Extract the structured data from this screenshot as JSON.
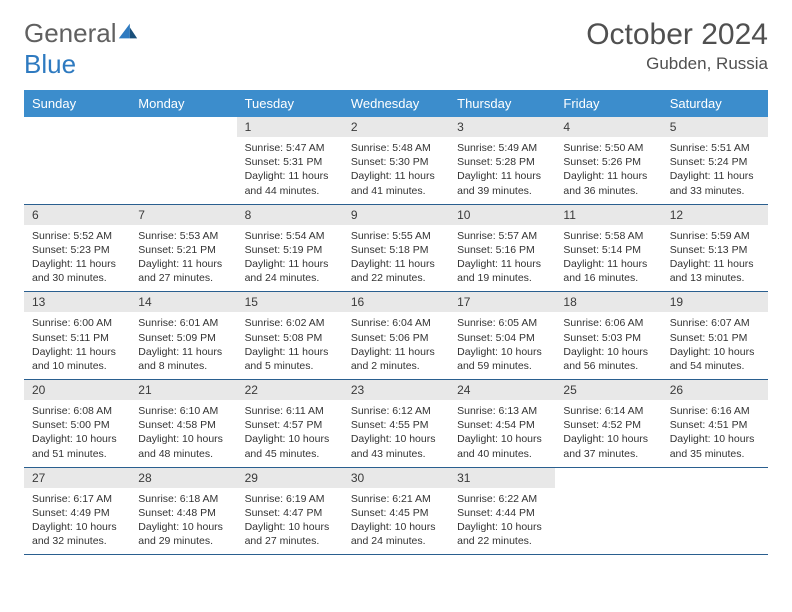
{
  "header": {
    "logo_word1": "General",
    "logo_word2": "Blue",
    "month_title": "October 2024",
    "location": "Gubden, Russia"
  },
  "colors": {
    "header_bg": "#3c8dcc",
    "daynum_bg": "#e8e8e8",
    "row_border": "#2a5f8f",
    "text": "#333333",
    "logo_gray": "#606060",
    "logo_blue": "#2e7ac0"
  },
  "day_headers": [
    "Sunday",
    "Monday",
    "Tuesday",
    "Wednesday",
    "Thursday",
    "Friday",
    "Saturday"
  ],
  "weeks": [
    [
      null,
      null,
      {
        "n": "1",
        "sr": "Sunrise: 5:47 AM",
        "ss": "Sunset: 5:31 PM",
        "d1": "Daylight: 11 hours",
        "d2": "and 44 minutes."
      },
      {
        "n": "2",
        "sr": "Sunrise: 5:48 AM",
        "ss": "Sunset: 5:30 PM",
        "d1": "Daylight: 11 hours",
        "d2": "and 41 minutes."
      },
      {
        "n": "3",
        "sr": "Sunrise: 5:49 AM",
        "ss": "Sunset: 5:28 PM",
        "d1": "Daylight: 11 hours",
        "d2": "and 39 minutes."
      },
      {
        "n": "4",
        "sr": "Sunrise: 5:50 AM",
        "ss": "Sunset: 5:26 PM",
        "d1": "Daylight: 11 hours",
        "d2": "and 36 minutes."
      },
      {
        "n": "5",
        "sr": "Sunrise: 5:51 AM",
        "ss": "Sunset: 5:24 PM",
        "d1": "Daylight: 11 hours",
        "d2": "and 33 minutes."
      }
    ],
    [
      {
        "n": "6",
        "sr": "Sunrise: 5:52 AM",
        "ss": "Sunset: 5:23 PM",
        "d1": "Daylight: 11 hours",
        "d2": "and 30 minutes."
      },
      {
        "n": "7",
        "sr": "Sunrise: 5:53 AM",
        "ss": "Sunset: 5:21 PM",
        "d1": "Daylight: 11 hours",
        "d2": "and 27 minutes."
      },
      {
        "n": "8",
        "sr": "Sunrise: 5:54 AM",
        "ss": "Sunset: 5:19 PM",
        "d1": "Daylight: 11 hours",
        "d2": "and 24 minutes."
      },
      {
        "n": "9",
        "sr": "Sunrise: 5:55 AM",
        "ss": "Sunset: 5:18 PM",
        "d1": "Daylight: 11 hours",
        "d2": "and 22 minutes."
      },
      {
        "n": "10",
        "sr": "Sunrise: 5:57 AM",
        "ss": "Sunset: 5:16 PM",
        "d1": "Daylight: 11 hours",
        "d2": "and 19 minutes."
      },
      {
        "n": "11",
        "sr": "Sunrise: 5:58 AM",
        "ss": "Sunset: 5:14 PM",
        "d1": "Daylight: 11 hours",
        "d2": "and 16 minutes."
      },
      {
        "n": "12",
        "sr": "Sunrise: 5:59 AM",
        "ss": "Sunset: 5:13 PM",
        "d1": "Daylight: 11 hours",
        "d2": "and 13 minutes."
      }
    ],
    [
      {
        "n": "13",
        "sr": "Sunrise: 6:00 AM",
        "ss": "Sunset: 5:11 PM",
        "d1": "Daylight: 11 hours",
        "d2": "and 10 minutes."
      },
      {
        "n": "14",
        "sr": "Sunrise: 6:01 AM",
        "ss": "Sunset: 5:09 PM",
        "d1": "Daylight: 11 hours",
        "d2": "and 8 minutes."
      },
      {
        "n": "15",
        "sr": "Sunrise: 6:02 AM",
        "ss": "Sunset: 5:08 PM",
        "d1": "Daylight: 11 hours",
        "d2": "and 5 minutes."
      },
      {
        "n": "16",
        "sr": "Sunrise: 6:04 AM",
        "ss": "Sunset: 5:06 PM",
        "d1": "Daylight: 11 hours",
        "d2": "and 2 minutes."
      },
      {
        "n": "17",
        "sr": "Sunrise: 6:05 AM",
        "ss": "Sunset: 5:04 PM",
        "d1": "Daylight: 10 hours",
        "d2": "and 59 minutes."
      },
      {
        "n": "18",
        "sr": "Sunrise: 6:06 AM",
        "ss": "Sunset: 5:03 PM",
        "d1": "Daylight: 10 hours",
        "d2": "and 56 minutes."
      },
      {
        "n": "19",
        "sr": "Sunrise: 6:07 AM",
        "ss": "Sunset: 5:01 PM",
        "d1": "Daylight: 10 hours",
        "d2": "and 54 minutes."
      }
    ],
    [
      {
        "n": "20",
        "sr": "Sunrise: 6:08 AM",
        "ss": "Sunset: 5:00 PM",
        "d1": "Daylight: 10 hours",
        "d2": "and 51 minutes."
      },
      {
        "n": "21",
        "sr": "Sunrise: 6:10 AM",
        "ss": "Sunset: 4:58 PM",
        "d1": "Daylight: 10 hours",
        "d2": "and 48 minutes."
      },
      {
        "n": "22",
        "sr": "Sunrise: 6:11 AM",
        "ss": "Sunset: 4:57 PM",
        "d1": "Daylight: 10 hours",
        "d2": "and 45 minutes."
      },
      {
        "n": "23",
        "sr": "Sunrise: 6:12 AM",
        "ss": "Sunset: 4:55 PM",
        "d1": "Daylight: 10 hours",
        "d2": "and 43 minutes."
      },
      {
        "n": "24",
        "sr": "Sunrise: 6:13 AM",
        "ss": "Sunset: 4:54 PM",
        "d1": "Daylight: 10 hours",
        "d2": "and 40 minutes."
      },
      {
        "n": "25",
        "sr": "Sunrise: 6:14 AM",
        "ss": "Sunset: 4:52 PM",
        "d1": "Daylight: 10 hours",
        "d2": "and 37 minutes."
      },
      {
        "n": "26",
        "sr": "Sunrise: 6:16 AM",
        "ss": "Sunset: 4:51 PM",
        "d1": "Daylight: 10 hours",
        "d2": "and 35 minutes."
      }
    ],
    [
      {
        "n": "27",
        "sr": "Sunrise: 6:17 AM",
        "ss": "Sunset: 4:49 PM",
        "d1": "Daylight: 10 hours",
        "d2": "and 32 minutes."
      },
      {
        "n": "28",
        "sr": "Sunrise: 6:18 AM",
        "ss": "Sunset: 4:48 PM",
        "d1": "Daylight: 10 hours",
        "d2": "and 29 minutes."
      },
      {
        "n": "29",
        "sr": "Sunrise: 6:19 AM",
        "ss": "Sunset: 4:47 PM",
        "d1": "Daylight: 10 hours",
        "d2": "and 27 minutes."
      },
      {
        "n": "30",
        "sr": "Sunrise: 6:21 AM",
        "ss": "Sunset: 4:45 PM",
        "d1": "Daylight: 10 hours",
        "d2": "and 24 minutes."
      },
      {
        "n": "31",
        "sr": "Sunrise: 6:22 AM",
        "ss": "Sunset: 4:44 PM",
        "d1": "Daylight: 10 hours",
        "d2": "and 22 minutes."
      },
      null,
      null
    ]
  ]
}
